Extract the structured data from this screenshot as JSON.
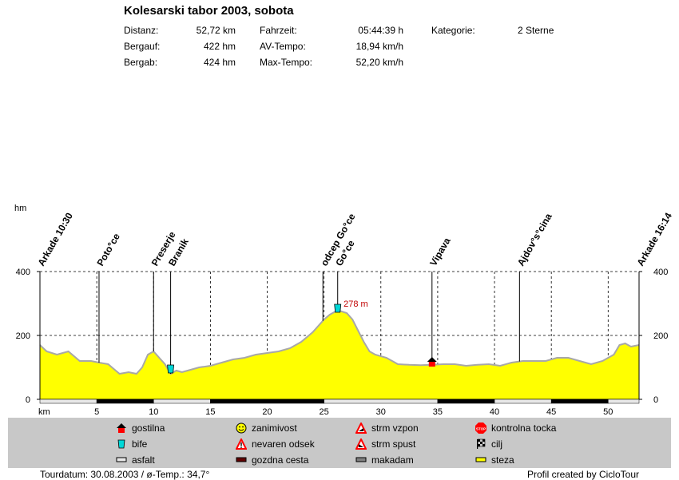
{
  "header": {
    "title": "Kolesarski tabor 2003, sobota",
    "stats": [
      {
        "label": "Distanz:",
        "value": "52,72 km"
      },
      {
        "label": "Bergauf:",
        "value": "422 hm"
      },
      {
        "label": "Bergab:",
        "value": "424 hm"
      },
      {
        "label": "Fahrzeit:",
        "value": "05:44:39 h"
      },
      {
        "label": "AV-Tempo:",
        "value": "18,94 km/h"
      },
      {
        "label": "Max-Tempo:",
        "value": "52,20 km/h"
      },
      {
        "label": "Kategorie:",
        "value": "2 Sterne"
      }
    ]
  },
  "chart_data": {
    "type": "area",
    "xlabel": "km",
    "ylabel": "hm",
    "xlim": [
      0,
      52.72
    ],
    "ylim": [
      0,
      400
    ],
    "xticks": [
      5,
      10,
      15,
      20,
      25,
      30,
      35,
      40,
      45,
      50
    ],
    "yticks": [
      0,
      200,
      400
    ],
    "grid": true,
    "profile": {
      "x": [
        0,
        0.6,
        1.5,
        2.5,
        3.5,
        4.5,
        5.2,
        6.0,
        6.5,
        7.0,
        7.8,
        8.5,
        9.0,
        9.5,
        10.0,
        10.5,
        11.0,
        11.5,
        12.0,
        12.5,
        13.0,
        14.0,
        15.0,
        16.0,
        17.0,
        18.0,
        19.0,
        20.0,
        21.0,
        22.0,
        23.0,
        24.0,
        25.0,
        25.5,
        26.0,
        26.3,
        27.0,
        27.5,
        28.0,
        28.5,
        29.0,
        29.5,
        30.5,
        31.5,
        32.5,
        33.5,
        34.5,
        35.5,
        36.5,
        37.5,
        38.5,
        39.5,
        40.5,
        41.5,
        42.5,
        43.5,
        44.5,
        45.5,
        46.5,
        47.5,
        48.5,
        49.5,
        50.5,
        51.0,
        51.5,
        52.0,
        52.72
      ],
      "y": [
        170,
        150,
        140,
        150,
        120,
        120,
        115,
        110,
        95,
        80,
        85,
        80,
        100,
        140,
        150,
        130,
        110,
        80,
        90,
        85,
        90,
        100,
        105,
        115,
        125,
        130,
        140,
        145,
        150,
        160,
        180,
        210,
        250,
        265,
        275,
        278,
        270,
        250,
        215,
        180,
        150,
        140,
        130,
        110,
        108,
        107,
        108,
        110,
        110,
        105,
        108,
        110,
        105,
        115,
        120,
        120,
        120,
        130,
        130,
        120,
        110,
        120,
        140,
        170,
        175,
        165,
        170
      ]
    },
    "waypoints": [
      {
        "label": "Arkade 10:30",
        "km": 0
      },
      {
        "label": "Poto°ce",
        "km": 5.2
      },
      {
        "label": "Preserje",
        "km": 10
      },
      {
        "label": "Branik",
        "km": 11.5
      },
      {
        "label": "odcep Go°ce",
        "km": 24.9
      },
      {
        "label": "Go°ce",
        "km": 26.2
      },
      {
        "label": "Vipava",
        "km": 34.5
      },
      {
        "label": "Ajdov°s°cina",
        "km": 42.2
      },
      {
        "label": "Arkade 16:14",
        "km": 52.72
      }
    ],
    "markers": [
      {
        "type": "bife",
        "km": 11.5,
        "elevation": 95
      },
      {
        "type": "bife",
        "km": 26.2,
        "elevation": 285
      },
      {
        "type": "gostilna",
        "km": 34.5,
        "elevation": 115
      }
    ],
    "max_label": {
      "text": "278 m",
      "km": 26.3,
      "elevation": 278
    },
    "surface_segments": [
      {
        "from": 0,
        "to": 5,
        "type": "asfalt"
      },
      {
        "from": 5,
        "to": 10,
        "type": "gozdna cesta"
      },
      {
        "from": 10,
        "to": 15,
        "type": "asfalt"
      },
      {
        "from": 15,
        "to": 25,
        "type": "gozdna cesta"
      },
      {
        "from": 25,
        "to": 35,
        "type": "asfalt"
      },
      {
        "from": 35,
        "to": 40,
        "type": "gozdna cesta"
      },
      {
        "from": 40,
        "to": 45,
        "type": "asfalt"
      },
      {
        "from": 45,
        "to": 50,
        "type": "gozdna cesta"
      },
      {
        "from": 50,
        "to": 52.72,
        "type": "asfalt"
      }
    ],
    "fill_color": "#ffff00",
    "line_color": "#a8a8a8"
  },
  "legend": [
    {
      "icon": "gostilna",
      "label": "gostilna"
    },
    {
      "icon": "zanimivost",
      "label": "zanimivost"
    },
    {
      "icon": "strm-vzpon",
      "label": "strm vzpon"
    },
    {
      "icon": "kontrolna-tocka",
      "label": "kontrolna tocka"
    },
    {
      "icon": "bife",
      "label": "bife"
    },
    {
      "icon": "nevaren-odsek",
      "label": "nevaren odsek"
    },
    {
      "icon": "strm-spust",
      "label": "strm spust"
    },
    {
      "icon": "cilj",
      "label": "cilj"
    },
    {
      "icon": "asfalt",
      "label": "asfalt"
    },
    {
      "icon": "gozdna-cesta",
      "label": "gozdna cesta"
    },
    {
      "icon": "makadam",
      "label": "makadam"
    },
    {
      "icon": "steza",
      "label": "steza"
    }
  ],
  "footer": {
    "left": "Tourdatum: 30.08.2003  /  ø-Temp.: 34,7°",
    "right": "Profil created by CicloTour"
  }
}
